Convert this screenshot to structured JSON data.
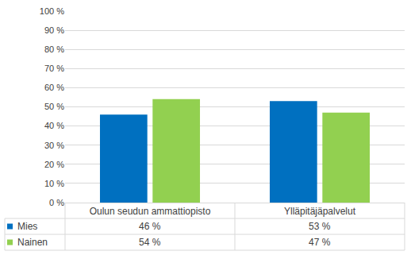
{
  "chart_data": {
    "type": "bar",
    "categories": [
      "Oulun seudun ammattiopisto",
      "Ylläpitäjäpalvelut"
    ],
    "series": [
      {
        "name": "Mies",
        "color": "#0070c0",
        "values": [
          46,
          53
        ],
        "value_labels": [
          "46 %",
          "53 %"
        ]
      },
      {
        "name": "Nainen",
        "color": "#92d050",
        "values": [
          54,
          47
        ],
        "value_labels": [
          "54 %",
          "47 %"
        ]
      }
    ],
    "ylim": [
      0,
      100
    ],
    "yticks": [
      {
        "value": 0,
        "label": "0 %"
      },
      {
        "value": 10,
        "label": "10 %"
      },
      {
        "value": 20,
        "label": "20 %"
      },
      {
        "value": 30,
        "label": "30 %"
      },
      {
        "value": 40,
        "label": "40 %"
      },
      {
        "value": 50,
        "label": "50 %"
      },
      {
        "value": 60,
        "label": "60 %"
      },
      {
        "value": 70,
        "label": "70 %"
      },
      {
        "value": 80,
        "label": "80 %"
      },
      {
        "value": 90,
        "label": "90 %"
      },
      {
        "value": 100,
        "label": "100 %"
      }
    ],
    "grid": true
  }
}
